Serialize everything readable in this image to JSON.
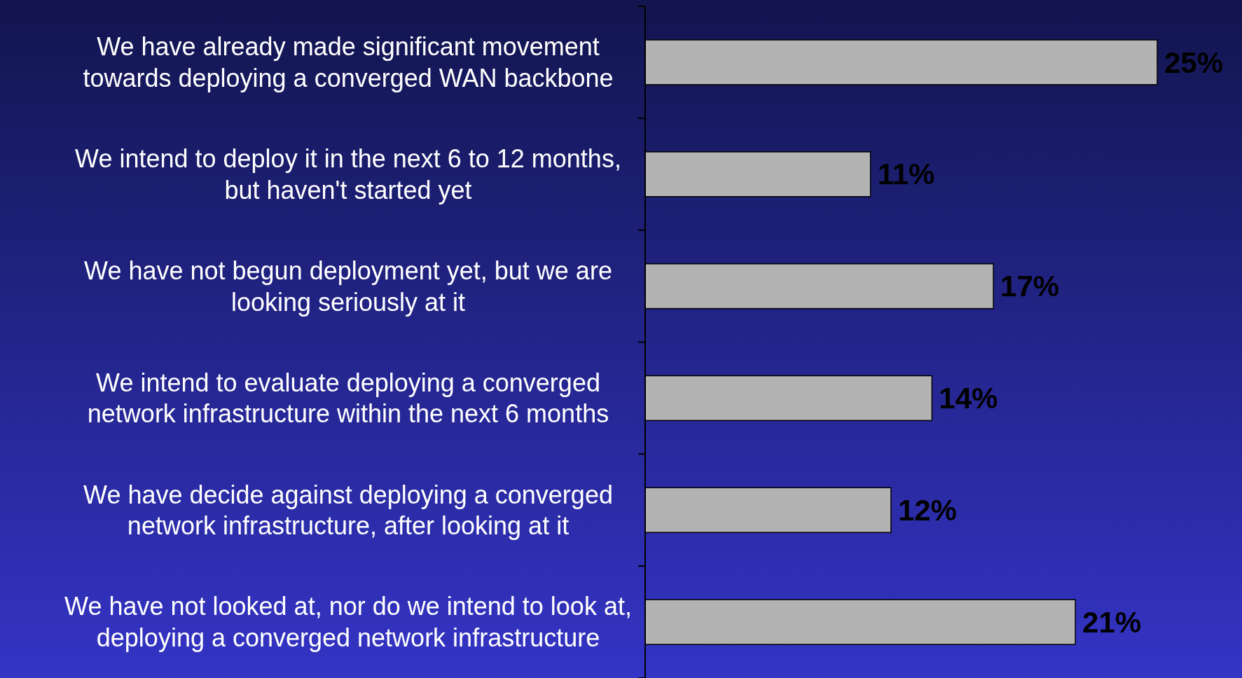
{
  "chart_data": {
    "type": "bar",
    "orientation": "horizontal",
    "categories": [
      "We have already made significant movement towards deploying a converged WAN backbone",
      "We intend to deploy it in the next 6 to 12 months, but haven't started yet",
      "We have not begun deployment yet, but we are looking seriously at it",
      "We intend to evaluate deploying a converged network infrastructure within the next 6 months",
      "We have decide against deploying a converged network infrastructure, after looking at it",
      "We have not looked at, nor do we intend to look at, deploying a converged network infrastructure"
    ],
    "values": [
      25,
      11,
      17,
      14,
      12,
      21
    ],
    "value_labels": [
      "25%",
      "11%",
      "17%",
      "14%",
      "12%",
      "21%"
    ],
    "color": "#b3b3b3"
  }
}
